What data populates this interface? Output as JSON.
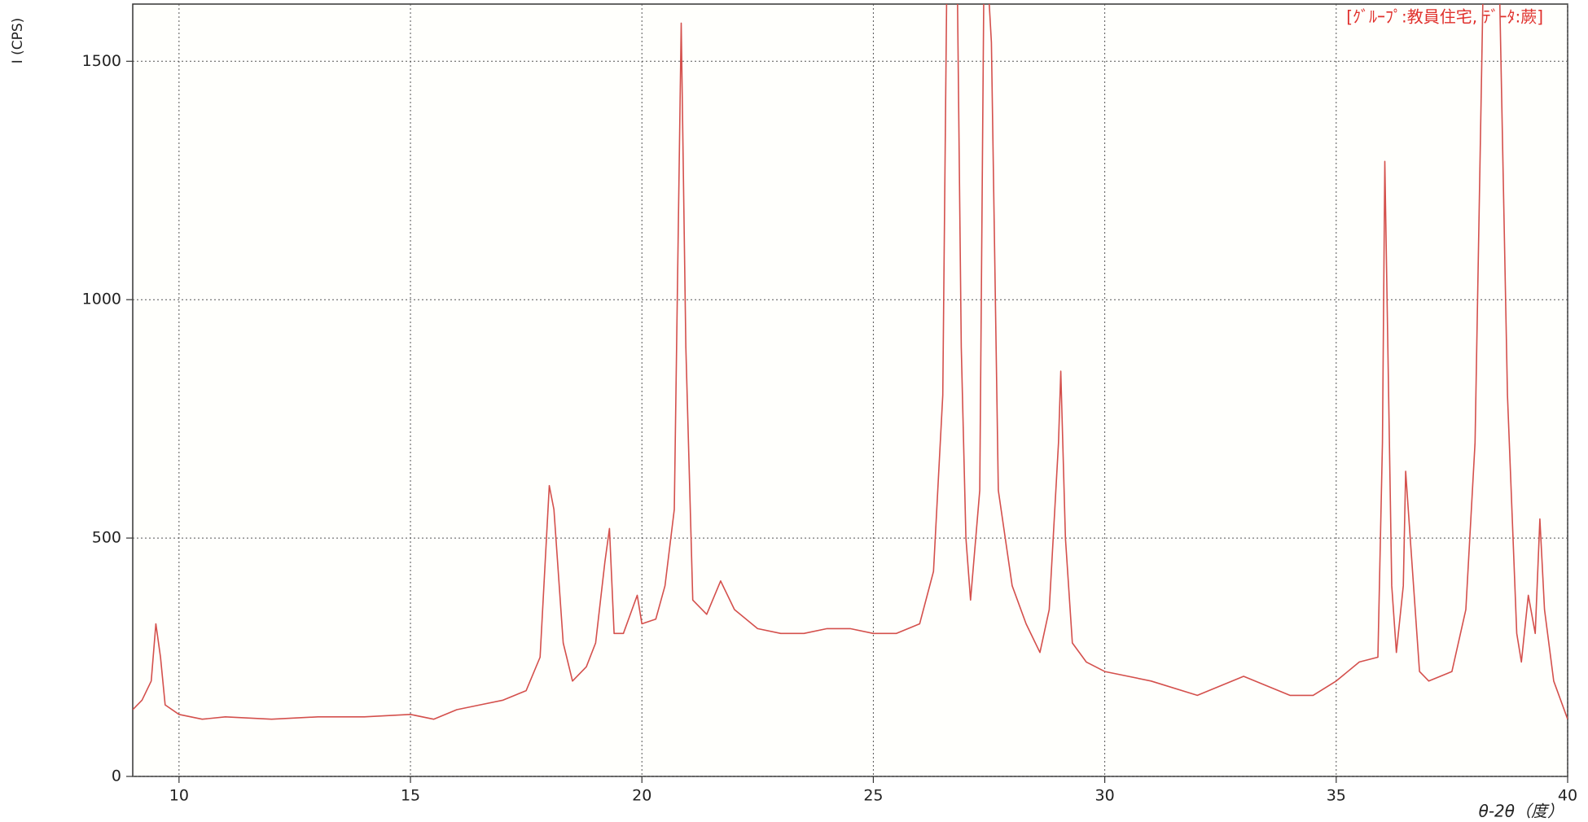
{
  "chart_data": {
    "type": "line",
    "annotation": "[ｸﾞﾙｰﾌﾟ:教員住宅, ﾃﾞｰﾀ:蕨]",
    "x_label": "θ-2θ（度）",
    "y_label": "I (CPS)",
    "color": "#d4504c",
    "grid": true,
    "xlim": [
      9,
      40
    ],
    "ylim": [
      0,
      1620
    ],
    "xticks": [
      10,
      15,
      20,
      25,
      30,
      35,
      40
    ],
    "yticks": [
      0,
      500,
      1000,
      1500
    ],
    "x": [
      9.0,
      9.2,
      9.4,
      9.5,
      9.6,
      9.7,
      10,
      10.5,
      11,
      12,
      13,
      14,
      15,
      15.5,
      16,
      16.5,
      17,
      17.5,
      17.8,
      18.0,
      18.1,
      18.3,
      18.5,
      18.8,
      19.0,
      19.2,
      19.3,
      19.4,
      19.6,
      19.9,
      20.0,
      20.3,
      20.5,
      20.7,
      20.85,
      20.95,
      21.1,
      21.4,
      21.7,
      22.0,
      22.5,
      23,
      23.5,
      24,
      24.5,
      25,
      25.5,
      26,
      26.3,
      26.5,
      26.6,
      26.8,
      26.9,
      27.0,
      27.1,
      27.3,
      27.4,
      27.55,
      27.7,
      28.0,
      28.3,
      28.6,
      28.8,
      29.0,
      29.05,
      29.15,
      29.3,
      29.6,
      30,
      31,
      32,
      33,
      34,
      34.5,
      35,
      35.5,
      35.9,
      36.0,
      36.05,
      36.2,
      36.3,
      36.45,
      36.5,
      36.6,
      36.8,
      37,
      37.5,
      37.8,
      38.0,
      38.2,
      38.5,
      38.7,
      38.9,
      39.0,
      39.15,
      39.3,
      39.4,
      39.5,
      39.7,
      40
    ],
    "values": [
      140,
      160,
      200,
      320,
      250,
      150,
      130,
      120,
      125,
      120,
      125,
      125,
      130,
      120,
      140,
      150,
      160,
      180,
      250,
      610,
      560,
      280,
      200,
      230,
      280,
      450,
      520,
      300,
      300,
      380,
      320,
      330,
      400,
      560,
      1580,
      900,
      370,
      340,
      410,
      350,
      310,
      300,
      300,
      310,
      310,
      300,
      300,
      320,
      430,
      800,
      1800,
      1800,
      900,
      500,
      370,
      600,
      1800,
      1540,
      600,
      400,
      320,
      260,
      350,
      700,
      850,
      500,
      280,
      240,
      220,
      200,
      170,
      210,
      170,
      170,
      200,
      240,
      250,
      700,
      1290,
      400,
      260,
      400,
      640,
      500,
      220,
      200,
      220,
      350,
      700,
      1800,
      1800,
      800,
      300,
      240,
      380,
      300,
      540,
      350,
      200,
      120
    ]
  }
}
